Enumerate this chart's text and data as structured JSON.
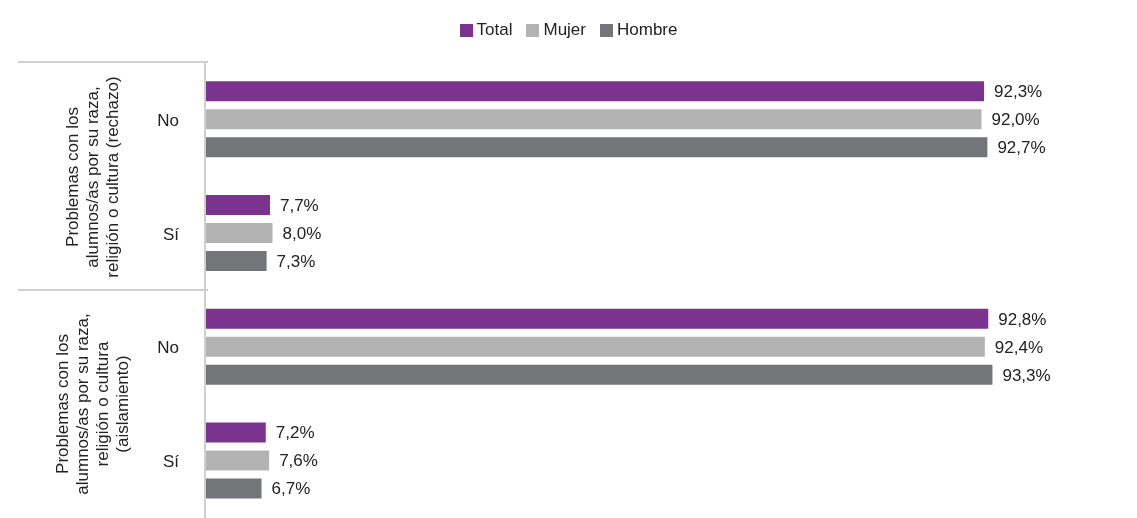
{
  "chart_data": {
    "type": "bar",
    "orientation": "horizontal",
    "legend": "top",
    "categories": [
      "No",
      "Sí",
      "No",
      "Sí"
    ],
    "series": [
      {
        "name": "Total",
        "color": "#7b3390",
        "values": [
          92.3,
          7.7,
          92.8,
          7.2
        ],
        "value_labels": [
          "92,3%",
          "7,7%",
          "92,8%",
          "7,2%"
        ]
      },
      {
        "name": "Mujer",
        "color": "#b3b3b3",
        "values": [
          92.0,
          8.0,
          92.4,
          7.6
        ],
        "value_labels": [
          "92,0%",
          "8,0%",
          "92,4%",
          "7,6%"
        ]
      },
      {
        "name": "Hombre",
        "color": "#737578",
        "values": [
          92.7,
          7.3,
          93.3,
          6.7
        ],
        "value_labels": [
          "92,7%",
          "7,3%",
          "93,3%",
          "6,7%"
        ]
      }
    ],
    "annotations": [
      "Problemas con los alumnos/as por su raza, religión o cultura (rechazo)",
      "Problemas con los alumnos/as por su raza, religión o cultura (aislamiento)"
    ]
  }
}
